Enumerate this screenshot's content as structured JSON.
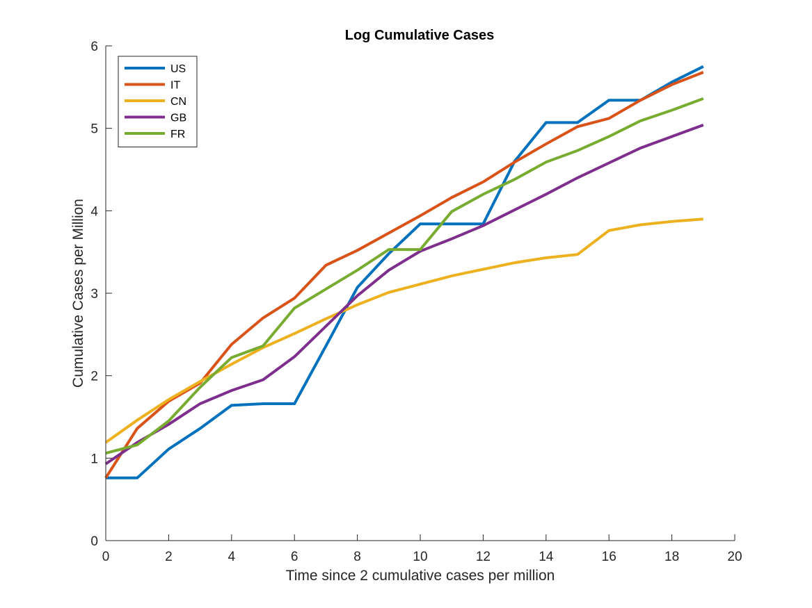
{
  "chart_data": {
    "type": "line",
    "title": "Log Cumulative Cases",
    "xlabel": "Time since 2 cumulative cases per million",
    "ylabel": "Cumulative Cases per Million",
    "xlim": [
      0,
      20
    ],
    "ylim": [
      0,
      6
    ],
    "xticks": [
      0,
      2,
      4,
      6,
      8,
      10,
      12,
      14,
      16,
      18,
      20
    ],
    "yticks": [
      0,
      1,
      2,
      3,
      4,
      5,
      6
    ],
    "grid": false,
    "legend_position": "top-left",
    "x": [
      0,
      1,
      2,
      3,
      4,
      5,
      6,
      7,
      8,
      9,
      10,
      11,
      12,
      13,
      14,
      15,
      16,
      17,
      18,
      19
    ],
    "series": [
      {
        "name": "US",
        "color": "#0072BD",
        "values": [
          0.76,
          0.76,
          1.11,
          1.36,
          1.64,
          1.66,
          1.66,
          2.36,
          3.07,
          3.48,
          3.84,
          3.84,
          3.84,
          4.6,
          5.07,
          5.07,
          5.34,
          5.34,
          5.56,
          5.75
        ]
      },
      {
        "name": "IT",
        "color": "#D95319",
        "values": [
          0.76,
          1.36,
          1.69,
          1.91,
          2.38,
          2.7,
          2.94,
          3.34,
          3.52,
          3.73,
          3.94,
          4.16,
          4.35,
          4.59,
          4.81,
          5.02,
          5.12,
          5.34,
          5.53,
          5.68
        ]
      },
      {
        "name": "CN",
        "color": "#EDB120",
        "values": [
          1.19,
          1.46,
          1.71,
          1.93,
          2.14,
          2.34,
          2.51,
          2.69,
          2.86,
          3.01,
          3.11,
          3.21,
          3.29,
          3.37,
          3.43,
          3.47,
          3.76,
          3.83,
          3.87,
          3.9
        ]
      },
      {
        "name": "GB",
        "color": "#7E2F8E",
        "values": [
          0.93,
          1.19,
          1.41,
          1.66,
          1.82,
          1.95,
          2.23,
          2.6,
          2.97,
          3.28,
          3.51,
          3.66,
          3.82,
          4.01,
          4.2,
          4.4,
          4.58,
          4.76,
          4.9,
          5.04
        ]
      },
      {
        "name": "FR",
        "color": "#77AC30",
        "values": [
          1.06,
          1.16,
          1.45,
          1.86,
          2.22,
          2.36,
          2.82,
          3.05,
          3.28,
          3.53,
          3.53,
          3.99,
          4.2,
          4.38,
          4.59,
          4.73,
          4.9,
          5.09,
          5.22,
          5.36
        ]
      }
    ]
  }
}
